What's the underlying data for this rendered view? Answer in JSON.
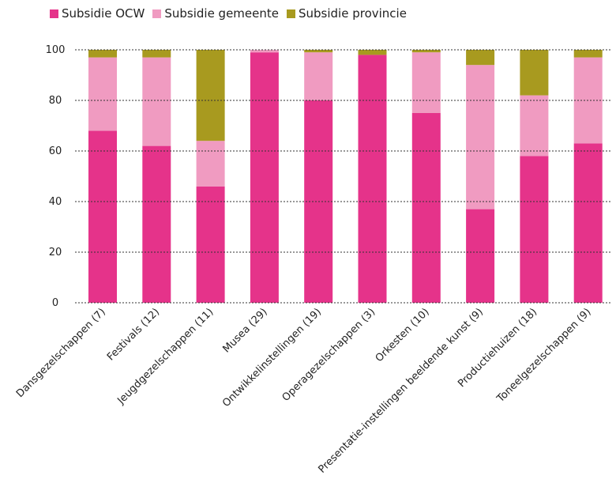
{
  "chart_data": {
    "type": "bar",
    "stacked": true,
    "categories": [
      "Dansgezelschappen (7)",
      "Festivals (12)",
      "Jeugdgezelschappen (11)",
      "Musea (29)",
      "Ontwikkelinstellingen (19)",
      "Operagezelschappen (3)",
      "Orkesten (10)",
      "Presentatie-instellingen beeldende kunst (9)",
      "Productiehuizen (18)",
      "Toneelgezelschappen (9)"
    ],
    "series": [
      {
        "name": "Subsidie OCW",
        "color": "#e5338a",
        "values": [
          68,
          62,
          46,
          99,
          80,
          98,
          75,
          37,
          58,
          63
        ]
      },
      {
        "name": "Subsidie gemeente",
        "color": "#f09bc1",
        "values": [
          29,
          35,
          18,
          1,
          19,
          0,
          24,
          57,
          24,
          34
        ]
      },
      {
        "name": "Subsidie provincie",
        "color": "#a89a1f",
        "values": [
          3,
          3,
          36,
          0,
          1,
          2,
          1,
          6,
          18,
          3
        ]
      }
    ],
    "ylim": [
      0,
      100
    ],
    "yticks": [
      0,
      20,
      40,
      60,
      80,
      100
    ],
    "grid": true,
    "legend_position": "top-left"
  }
}
